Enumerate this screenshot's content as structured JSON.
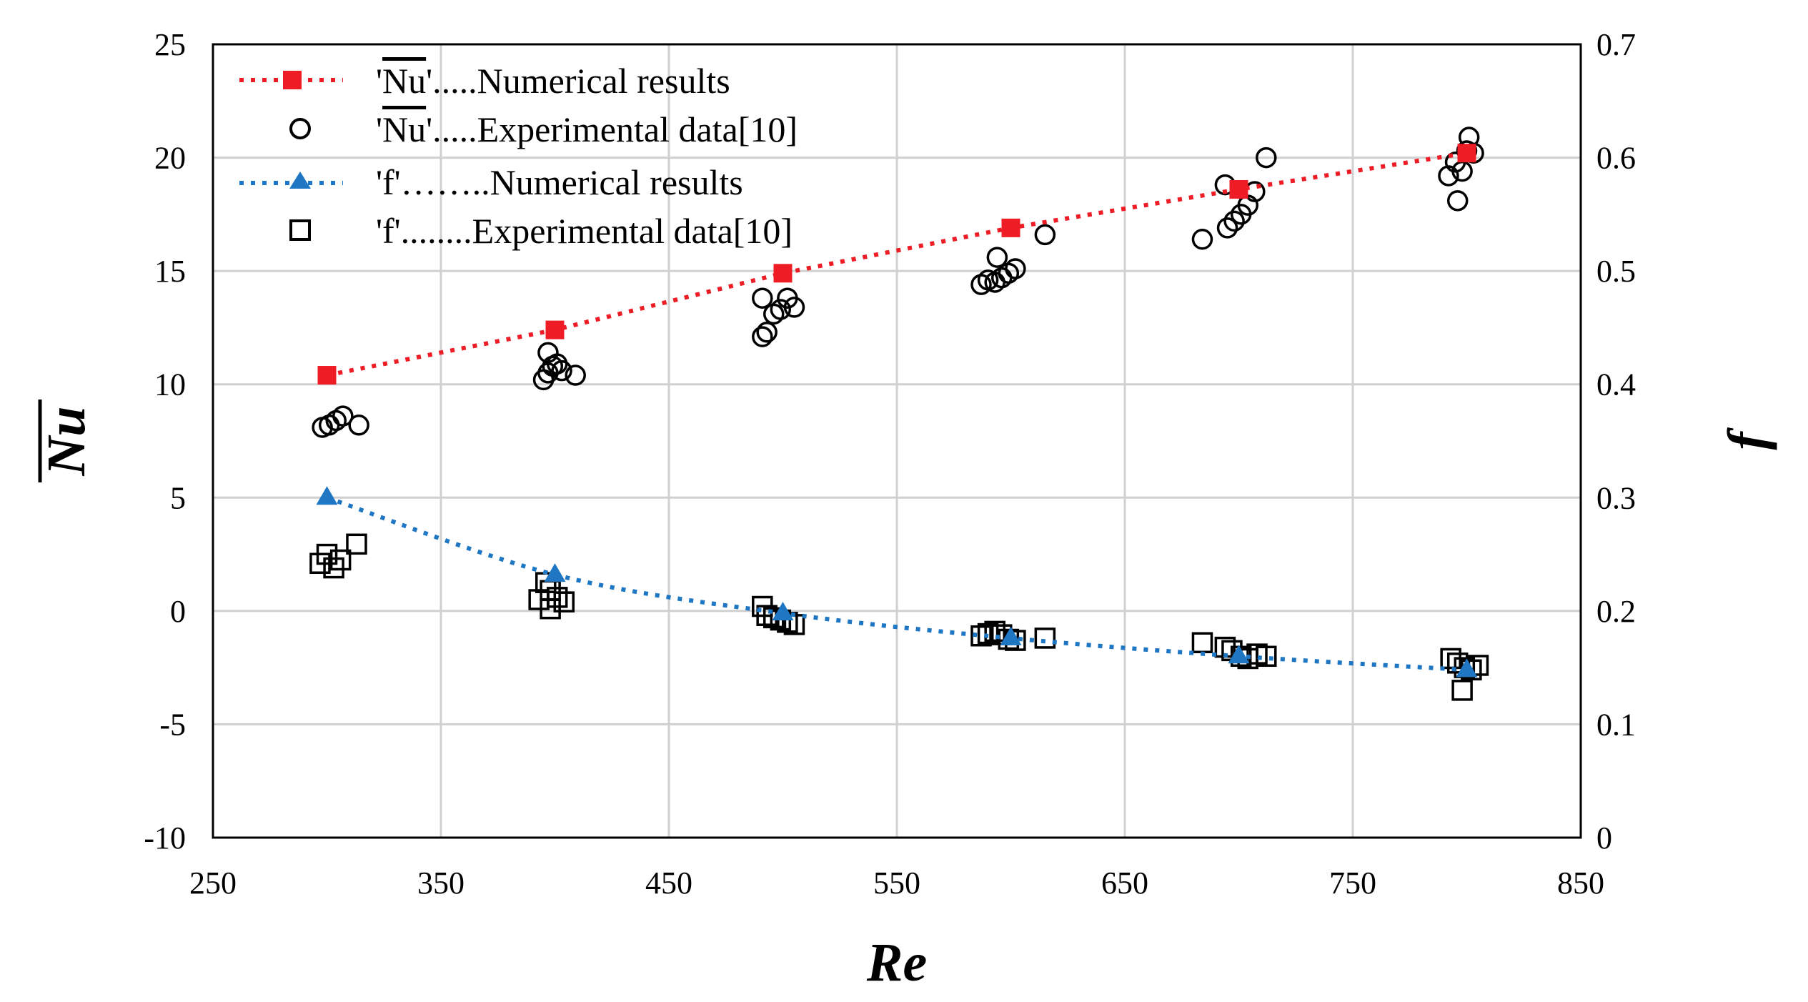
{
  "chart_data": {
    "type": "scatter",
    "title": "",
    "xlabel": "Re",
    "ylabel": "Nu",
    "y2label": "f",
    "xlim": [
      250,
      850
    ],
    "ylim": [
      -10,
      25
    ],
    "y2lim": [
      0,
      0.7
    ],
    "x_ticks": [
      250,
      350,
      450,
      550,
      650,
      750,
      850
    ],
    "y_ticks": [
      -10,
      -5,
      0,
      5,
      10,
      15,
      20,
      25
    ],
    "y2_ticks": [
      0,
      0.1,
      0.2,
      0.3,
      0.4,
      0.5,
      0.6,
      0.7
    ],
    "grid": true,
    "legend_position": "top-left",
    "colors": {
      "nu_numerical": "#ee1c25",
      "f_numerical": "#1f77c4",
      "markers": "#000000",
      "grid": "#d0d0d0"
    },
    "series": [
      {
        "name": "Nu numerical",
        "legend_main": "Nu",
        "legend_text": "'Nu'.....Numerical results",
        "legend_tail": "'.....Numerical results",
        "marker": "square-filled",
        "line": "dotted",
        "axis": "left",
        "x": [
          300,
          400,
          500,
          600,
          700,
          800
        ],
        "y": [
          10.4,
          12.4,
          14.9,
          16.9,
          18.6,
          20.2
        ]
      },
      {
        "name": "Nu experimental",
        "legend_main": "Nu",
        "legend_text": "'Nu'.....Experimental data[10]",
        "legend_tail": "'.....Experimental data[10]",
        "marker": "circle-open",
        "axis": "left",
        "x": [
          298,
          301,
          304,
          307,
          314,
          395,
          397,
          399,
          401,
          403,
          397,
          409,
          491,
          493,
          496,
          499,
          502,
          505,
          491,
          587,
          590,
          593,
          596,
          599,
          602,
          594,
          615,
          684,
          695,
          698,
          701,
          704,
          707,
          694,
          712,
          792,
          795,
          798,
          801,
          796,
          800,
          803
        ],
        "y": [
          8.1,
          8.2,
          8.4,
          8.6,
          8.2,
          10.2,
          10.5,
          10.8,
          10.9,
          10.6,
          11.4,
          10.4,
          13.8,
          12.3,
          13.1,
          13.3,
          13.8,
          13.4,
          12.1,
          14.4,
          14.6,
          14.5,
          14.7,
          14.9,
          15.1,
          15.6,
          16.6,
          16.4,
          16.9,
          17.2,
          17.5,
          17.9,
          18.5,
          18.8,
          20.0,
          19.2,
          19.8,
          19.4,
          20.9,
          18.1,
          20.3,
          20.2
        ]
      },
      {
        "name": "f numerical",
        "legend_text": "'f'……..Numerical results",
        "marker": "triangle-filled",
        "line": "dotted",
        "axis": "right",
        "x": [
          300,
          400,
          500,
          600,
          700,
          800
        ],
        "y": [
          0.3,
          0.232,
          0.198,
          0.176,
          0.16,
          0.148
        ]
      },
      {
        "name": "f experimental",
        "legend_text": "'f'........Experimental data[10]",
        "marker": "square-open",
        "axis": "right",
        "x": [
          297,
          300,
          303,
          306,
          313,
          393,
          396,
          398,
          401,
          404,
          398,
          491,
          493,
          496,
          499,
          502,
          505,
          587,
          590,
          593,
          596,
          599,
          602,
          615,
          684,
          694,
          697,
          701,
          704,
          708,
          712,
          793,
          796,
          799,
          802,
          805,
          798
        ],
        "y": [
          0.242,
          0.25,
          0.238,
          0.245,
          0.259,
          0.21,
          0.225,
          0.218,
          0.212,
          0.208,
          0.202,
          0.204,
          0.196,
          0.194,
          0.192,
          0.19,
          0.188,
          0.178,
          0.18,
          0.182,
          0.179,
          0.175,
          0.174,
          0.176,
          0.172,
          0.168,
          0.165,
          0.16,
          0.158,
          0.162,
          0.16,
          0.158,
          0.154,
          0.15,
          0.148,
          0.152,
          0.13
        ]
      }
    ]
  }
}
